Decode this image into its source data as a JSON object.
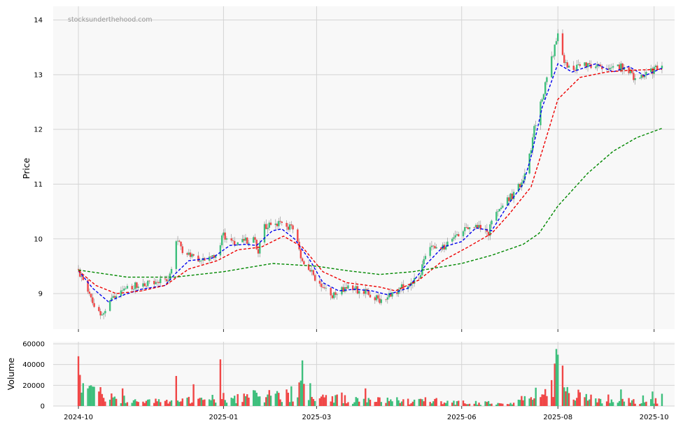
{
  "watermark": "stocksunderthehood.com",
  "colors": {
    "up": "#3dbf7c",
    "down": "#f04646",
    "ma_blue": "#0000ee",
    "ma_red": "#ee0000",
    "ma_green": "#008800",
    "panel_bg": "#f8f8f8",
    "grid": "#d4d4d4"
  },
  "chart_data": [
    {
      "type": "candlestick",
      "ylabel": "Price",
      "ylim": [
        8.35,
        14.25
      ],
      "yticks": [
        9,
        10,
        11,
        12,
        13,
        14
      ],
      "xlim": [
        "2024-09-15",
        "2025-10-14"
      ],
      "xticks": [
        {
          "date": "2024-10-01",
          "label": "2024-10"
        },
        {
          "date": "2025-01-01",
          "label": "2025-01"
        },
        {
          "date": "2025-03-01",
          "label": "2025-03"
        },
        {
          "date": "2025-06-01",
          "label": "2025-06"
        },
        {
          "date": "2025-08-01",
          "label": "2025-08"
        },
        {
          "date": "2025-10-01",
          "label": "2025-10"
        }
      ],
      "grid": true,
      "price_path": [
        [
          "2024-10-01",
          9.45
        ],
        [
          "2024-10-04",
          9.2
        ],
        [
          "2024-10-08",
          8.95
        ],
        [
          "2024-10-12",
          8.72
        ],
        [
          "2024-10-16",
          8.65
        ],
        [
          "2024-10-22",
          8.9
        ],
        [
          "2024-10-30",
          9.1
        ],
        [
          "2024-11-10",
          9.18
        ],
        [
          "2024-11-20",
          9.22
        ],
        [
          "2024-11-28",
          9.3
        ],
        [
          "2024-12-01",
          9.9
        ],
        [
          "2024-12-04",
          10.0
        ],
        [
          "2024-12-07",
          9.7
        ],
        [
          "2024-12-15",
          9.65
        ],
        [
          "2024-12-28",
          9.7
        ],
        [
          "2025-01-01",
          10.1
        ],
        [
          "2025-01-05",
          9.9
        ],
        [
          "2025-01-10",
          9.95
        ],
        [
          "2025-01-20",
          10.0
        ],
        [
          "2025-01-23",
          9.8
        ],
        [
          "2025-01-26",
          10.2
        ],
        [
          "2025-02-05",
          10.3
        ],
        [
          "2025-02-14",
          10.2
        ],
        [
          "2025-02-20",
          9.6
        ],
        [
          "2025-03-01",
          9.25
        ],
        [
          "2025-03-10",
          8.95
        ],
        [
          "2025-03-20",
          9.1
        ],
        [
          "2025-04-01",
          9.05
        ],
        [
          "2025-04-12",
          8.85
        ],
        [
          "2025-04-18",
          9.0
        ],
        [
          "2025-05-05",
          9.3
        ],
        [
          "2025-05-10",
          9.8
        ],
        [
          "2025-05-25",
          9.9
        ],
        [
          "2025-06-01",
          10.2
        ],
        [
          "2025-06-12",
          10.2
        ],
        [
          "2025-06-18",
          10.1
        ],
        [
          "2025-06-22",
          10.5
        ],
        [
          "2025-06-30",
          10.7
        ],
        [
          "2025-07-05",
          10.85
        ],
        [
          "2025-07-12",
          11.2
        ],
        [
          "2025-07-17",
          12.0
        ],
        [
          "2025-07-24",
          12.8
        ],
        [
          "2025-07-29",
          13.4
        ],
        [
          "2025-08-01",
          13.7
        ],
        [
          "2025-08-05",
          13.2
        ],
        [
          "2025-08-12",
          13.1
        ],
        [
          "2025-08-20",
          13.2
        ],
        [
          "2025-09-01",
          13.1
        ],
        [
          "2025-09-12",
          13.15
        ],
        [
          "2025-09-20",
          12.9
        ],
        [
          "2025-10-01",
          13.1
        ],
        [
          "2025-10-06",
          13.15
        ]
      ],
      "series": [
        {
          "color": "#0000ee",
          "points": [
            [
              "2024-10-01",
              9.42
            ],
            [
              "2024-10-10",
              9.1
            ],
            [
              "2024-10-20",
              8.85
            ],
            [
              "2024-10-30",
              8.98
            ],
            [
              "2024-11-10",
              9.08
            ],
            [
              "2024-11-25",
              9.15
            ],
            [
              "2024-12-01",
              9.35
            ],
            [
              "2024-12-10",
              9.6
            ],
            [
              "2024-12-25",
              9.65
            ],
            [
              "2025-01-05",
              9.88
            ],
            [
              "2025-01-15",
              9.9
            ],
            [
              "2025-01-22",
              9.88
            ],
            [
              "2025-02-01",
              10.15
            ],
            [
              "2025-02-07",
              10.18
            ],
            [
              "2025-02-15",
              10.0
            ],
            [
              "2025-02-25",
              9.6
            ],
            [
              "2025-03-05",
              9.2
            ],
            [
              "2025-03-15",
              9.05
            ],
            [
              "2025-03-25",
              9.08
            ],
            [
              "2025-04-05",
              9.05
            ],
            [
              "2025-04-15",
              8.98
            ],
            [
              "2025-04-28",
              9.1
            ],
            [
              "2025-05-10",
              9.55
            ],
            [
              "2025-05-20",
              9.85
            ],
            [
              "2025-06-01",
              9.95
            ],
            [
              "2025-06-10",
              10.2
            ],
            [
              "2025-06-20",
              10.15
            ],
            [
              "2025-07-01",
              10.65
            ],
            [
              "2025-07-10",
              11.0
            ],
            [
              "2025-07-15",
              11.5
            ],
            [
              "2025-07-22",
              12.4
            ],
            [
              "2025-08-01",
              13.2
            ],
            [
              "2025-08-10",
              13.05
            ],
            [
              "2025-08-25",
              13.2
            ],
            [
              "2025-09-05",
              13.05
            ],
            [
              "2025-09-15",
              13.15
            ],
            [
              "2025-09-25",
              12.98
            ],
            [
              "2025-10-06",
              13.12
            ]
          ]
        },
        {
          "color": "#ee0000",
          "points": [
            [
              "2024-10-01",
              9.42
            ],
            [
              "2024-10-12",
              9.15
            ],
            [
              "2024-10-25",
              9.0
            ],
            [
              "2024-11-10",
              9.05
            ],
            [
              "2024-11-25",
              9.15
            ],
            [
              "2024-12-10",
              9.45
            ],
            [
              "2024-12-28",
              9.6
            ],
            [
              "2025-01-10",
              9.8
            ],
            [
              "2025-01-25",
              9.85
            ],
            [
              "2025-02-08",
              10.05
            ],
            [
              "2025-02-20",
              9.85
            ],
            [
              "2025-03-05",
              9.4
            ],
            [
              "2025-03-20",
              9.2
            ],
            [
              "2025-04-10",
              9.12
            ],
            [
              "2025-04-20",
              9.05
            ],
            [
              "2025-05-05",
              9.25
            ],
            [
              "2025-05-20",
              9.6
            ],
            [
              "2025-06-05",
              9.85
            ],
            [
              "2025-06-20",
              10.1
            ],
            [
              "2025-07-01",
              10.45
            ],
            [
              "2025-07-15",
              10.95
            ],
            [
              "2025-07-22",
              11.6
            ],
            [
              "2025-08-01",
              12.55
            ],
            [
              "2025-08-15",
              12.95
            ],
            [
              "2025-09-01",
              13.05
            ],
            [
              "2025-09-15",
              13.08
            ],
            [
              "2025-10-06",
              13.1
            ]
          ]
        },
        {
          "color": "#008800",
          "points": [
            [
              "2024-10-01",
              9.43
            ],
            [
              "2024-11-01",
              9.3
            ],
            [
              "2024-12-01",
              9.3
            ],
            [
              "2025-01-01",
              9.4
            ],
            [
              "2025-02-01",
              9.55
            ],
            [
              "2025-03-01",
              9.5
            ],
            [
              "2025-03-20",
              9.42
            ],
            [
              "2025-04-10",
              9.35
            ],
            [
              "2025-05-01",
              9.4
            ],
            [
              "2025-06-01",
              9.55
            ],
            [
              "2025-06-20",
              9.7
            ],
            [
              "2025-07-10",
              9.9
            ],
            [
              "2025-07-20",
              10.1
            ],
            [
              "2025-08-01",
              10.6
            ],
            [
              "2025-08-20",
              11.2
            ],
            [
              "2025-09-05",
              11.6
            ],
            [
              "2025-09-20",
              11.85
            ],
            [
              "2025-10-06",
              12.02
            ]
          ]
        }
      ]
    },
    {
      "type": "bar",
      "ylabel": "Volume",
      "ylim": [
        0,
        62000
      ],
      "yticks": [
        0,
        20000,
        40000,
        60000
      ],
      "volume_profile": [
        [
          "2024-10-01",
          30000
        ],
        [
          "2024-10-10",
          14000
        ],
        [
          "2024-10-20",
          9000
        ],
        [
          "2024-11-05",
          5000
        ],
        [
          "2024-11-25",
          4000
        ],
        [
          "2024-12-15",
          6000
        ],
        [
          "2025-01-01",
          8000
        ],
        [
          "2025-01-20",
          9000
        ],
        [
          "2025-02-10",
          12000
        ],
        [
          "2025-02-20",
          15000
        ],
        [
          "2025-03-05",
          7000
        ],
        [
          "2025-03-25",
          6000
        ],
        [
          "2025-04-20",
          5000
        ],
        [
          "2025-05-15",
          5000
        ],
        [
          "2025-06-05",
          3000
        ],
        [
          "2025-06-25",
          4000
        ],
        [
          "2025-07-10",
          6000
        ],
        [
          "2025-07-25",
          15000
        ],
        [
          "2025-08-01",
          30000
        ],
        [
          "2025-08-05",
          12000
        ],
        [
          "2025-08-25",
          7000
        ],
        [
          "2025-09-15",
          6000
        ],
        [
          "2025-10-06",
          7000
        ]
      ],
      "spikes": [
        [
          "2024-10-01",
          48000
        ],
        [
          "2024-10-02",
          30000
        ],
        [
          "2024-10-04",
          22000
        ],
        [
          "2024-10-07",
          17000
        ],
        [
          "2024-10-09",
          20000
        ],
        [
          "2024-10-14",
          14000
        ],
        [
          "2024-10-29",
          17000
        ],
        [
          "2024-12-02",
          29000
        ],
        [
          "2024-12-13",
          21000
        ],
        [
          "2024-12-30",
          45000
        ],
        [
          "2025-02-13",
          19000
        ],
        [
          "2025-02-20",
          44000
        ],
        [
          "2025-02-25",
          22000
        ],
        [
          "2025-03-17",
          13000
        ],
        [
          "2025-04-01",
          17000
        ],
        [
          "2025-05-10",
          15000
        ],
        [
          "2025-07-28",
          25000
        ],
        [
          "2025-07-31",
          55000
        ],
        [
          "2025-08-03",
          41000
        ],
        [
          "2025-08-04",
          39000
        ],
        [
          "2025-09-10",
          16000
        ],
        [
          "2025-09-30",
          14000
        ],
        [
          "2025-10-05",
          15000
        ]
      ]
    }
  ]
}
